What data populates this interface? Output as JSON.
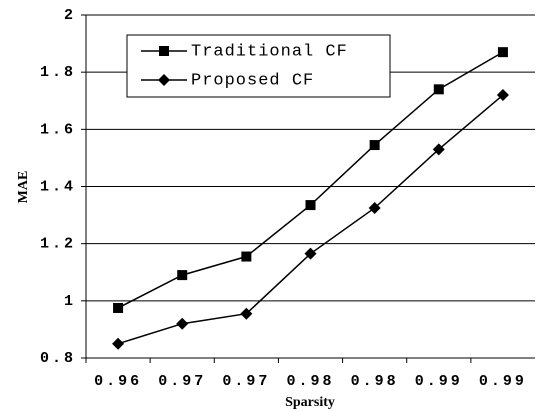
{
  "chart_data": {
    "type": "line",
    "x_label": "Sparsity",
    "y_label": "MAE",
    "categories": [
      "0.96",
      "0.97",
      "0.97",
      "0.98",
      "0.98",
      "0.99",
      "0.99"
    ],
    "series": [
      {
        "name": "Traditional CF",
        "color": "#000000",
        "marker": "square",
        "values": [
          0.975,
          1.09,
          1.155,
          1.335,
          1.545,
          1.74,
          1.87
        ]
      },
      {
        "name": "Proposed CF",
        "color": "#000000",
        "marker": "diamond",
        "values": [
          0.85,
          0.92,
          0.955,
          1.165,
          1.325,
          1.53,
          1.72
        ]
      }
    ],
    "ylim": [
      0.8,
      2
    ],
    "yticks": [
      0.8,
      1,
      1.2,
      1.4,
      1.6,
      1.8,
      2
    ],
    "grid": true,
    "legend": "top-left"
  }
}
